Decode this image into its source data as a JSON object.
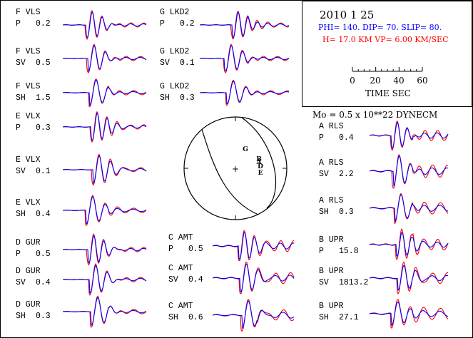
{
  "header": {
    "date": "2010  1 25",
    "mechanism": "PHI= 140. DIP= 70. SLIP=  80.",
    "params": "H= 17.0 KM  VP= 6.00 KM/SEC",
    "scale_ticks": [
      "0",
      "20",
      "40",
      "60"
    ],
    "scale_label": "TIME  SEC",
    "moment": "Mo =  0.5 x 10**22 DYNECM"
  },
  "colors": {
    "observed": "#ff0000",
    "synthetic": "#0000ff",
    "mechanism_text": "#0000ff",
    "params_text": "#ff0000",
    "ink": "#000000"
  },
  "beachball": {
    "center_mark": "+",
    "station_letters": [
      "G",
      "B",
      "A",
      "D",
      "E"
    ]
  },
  "traces": [
    {
      "station": "F VLS",
      "component": "P",
      "value": "0.2"
    },
    {
      "station": "F VLS",
      "component": "SV",
      "value": "0.5"
    },
    {
      "station": "F VLS",
      "component": "SH",
      "value": "1.5"
    },
    {
      "station": "E VLX",
      "component": "P",
      "value": "0.3"
    },
    {
      "station": "E VLX",
      "component": "SV",
      "value": "0.1"
    },
    {
      "station": "E VLX",
      "component": "SH",
      "value": "0.4"
    },
    {
      "station": "D GUR",
      "component": "P",
      "value": "0.5"
    },
    {
      "station": "D GUR",
      "component": "SV",
      "value": "0.4"
    },
    {
      "station": "D GUR",
      "component": "SH",
      "value": "0.3"
    },
    {
      "station": "G LKD2",
      "component": "P",
      "value": "0.2"
    },
    {
      "station": "G LKD2",
      "component": "SV",
      "value": "0.1"
    },
    {
      "station": "G LKD2",
      "component": "SH",
      "value": "0.3"
    },
    {
      "station": "C AMT",
      "component": "P",
      "value": "0.5"
    },
    {
      "station": "C AMT",
      "component": "SV",
      "value": "0.4"
    },
    {
      "station": "C AMT",
      "component": "SH",
      "value": "0.6"
    },
    {
      "station": "A RLS",
      "component": "P",
      "value": "0.4"
    },
    {
      "station": "A RLS",
      "component": "SV",
      "value": "2.2"
    },
    {
      "station": "A RLS",
      "component": "SH",
      "value": "0.3"
    },
    {
      "station": "B UPR",
      "component": "P",
      "value": "15.8"
    },
    {
      "station": "B UPR",
      "component": "SV",
      "value": "1813.2"
    },
    {
      "station": "B UPR",
      "component": "SH",
      "value": "27.1"
    }
  ]
}
